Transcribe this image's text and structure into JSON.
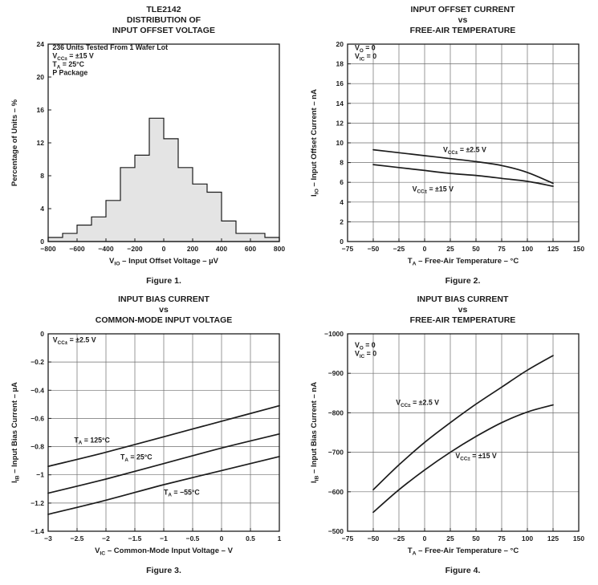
{
  "page": {
    "background": "#ffffff",
    "text_color": "#1c1c1c",
    "grid_color": "#6e6e6e",
    "histogram_fill": "#e4e4e4"
  },
  "chart_data": [
    {
      "type": "histogram",
      "title_lines": [
        "TLE2142",
        "DISTRIBUTION OF",
        "INPUT OFFSET VOLTAGE"
      ],
      "caption": "Figure 1.",
      "xlabel": "V_{IO} – Input Offset Voltage – µV",
      "ylabel": "Percentage of Units – %",
      "xlim": [
        -800,
        800
      ],
      "ylim": [
        0,
        24
      ],
      "xticks": [
        -800,
        -600,
        -400,
        -200,
        0,
        200,
        400,
        600,
        800
      ],
      "xtick_labels": [
        "−800",
        "−600",
        "−400",
        "−200",
        "0",
        "200",
        "400",
        "600",
        "800"
      ],
      "yticks": [
        0,
        4,
        8,
        12,
        16,
        20,
        24
      ],
      "ytick_labels": [
        "0",
        "4",
        "8",
        "12",
        "16",
        "20",
        "24"
      ],
      "grid": false,
      "bin_start": -800,
      "bin_width": 100,
      "values": [
        0.5,
        1,
        2,
        3,
        5,
        9,
        10.5,
        15,
        12.5,
        9,
        7,
        6,
        2.5,
        1,
        1,
        0.5
      ],
      "annotations": [
        {
          "x": -770,
          "y": 23.3,
          "anchor": "start",
          "lines": [
            "236 Units Tested From 1 Wafer Lot",
            "V_{CC±} = ±15 V",
            "T_{A} = 25°C",
            "P Package"
          ]
        }
      ]
    },
    {
      "type": "line",
      "title_lines": [
        "INPUT OFFSET CURRENT",
        "vs",
        "FREE-AIR TEMPERATURE"
      ],
      "caption": "Figure 2.",
      "xlabel": "T_{A} – Free-Air Temperature – °C",
      "ylabel": "I_{IO} – Input Offset Current – nA",
      "xlim": [
        -75,
        150
      ],
      "ylim": [
        0,
        20
      ],
      "xticks": [
        -75,
        -50,
        -25,
        0,
        25,
        50,
        75,
        100,
        125,
        150
      ],
      "xtick_labels": [
        "−75",
        "−50",
        "−25",
        "0",
        "25",
        "50",
        "75",
        "100",
        "125",
        "150"
      ],
      "yticks": [
        0,
        2,
        4,
        6,
        8,
        10,
        12,
        14,
        16,
        18,
        20
      ],
      "ytick_labels": [
        "0",
        "2",
        "4",
        "6",
        "8",
        "10",
        "12",
        "14",
        "16",
        "18",
        "20"
      ],
      "grid": true,
      "series": [
        {
          "name": "V_{CC±} = ±2.5 V",
          "points": [
            [
              -50,
              9.3
            ],
            [
              -25,
              9.0
            ],
            [
              0,
              8.7
            ],
            [
              25,
              8.4
            ],
            [
              50,
              8.1
            ],
            [
              75,
              7.7
            ],
            [
              100,
              7.0
            ],
            [
              125,
              5.9
            ]
          ],
          "label_x": 18,
          "label_y": 9.05,
          "label_anchor": "start"
        },
        {
          "name": "V_{CC±} = ±15 V",
          "points": [
            [
              -50,
              7.8
            ],
            [
              -25,
              7.5
            ],
            [
              0,
              7.2
            ],
            [
              25,
              6.9
            ],
            [
              50,
              6.7
            ],
            [
              75,
              6.4
            ],
            [
              100,
              6.1
            ],
            [
              125,
              5.6
            ]
          ],
          "label_x": -12,
          "label_y": 5.1,
          "label_anchor": "start"
        }
      ],
      "annotations": [
        {
          "x": -68,
          "y": 19.4,
          "anchor": "start",
          "lines": [
            "V_{O} = 0",
            "V_{IC} = 0"
          ]
        }
      ]
    },
    {
      "type": "line",
      "title_lines": [
        "INPUT BIAS CURRENT",
        "vs",
        "COMMON-MODE INPUT VOLTAGE"
      ],
      "caption": "Figure 3.",
      "xlabel": "V_{IC} – Common-Mode Input Voltage – V",
      "ylabel": "I_{IB} – Input Bias Current – µA",
      "xlim": [
        -3,
        1
      ],
      "ylim": [
        -1.4,
        0
      ],
      "xticks": [
        -3,
        -2.5,
        -2,
        -1.5,
        -1,
        -0.5,
        0,
        0.5,
        1
      ],
      "xtick_labels": [
        "−3",
        "−2.5",
        "−2",
        "−1.5",
        "−1",
        "−0.5",
        "0",
        "0.5",
        "1"
      ],
      "yticks": [
        0,
        -0.2,
        -0.4,
        -0.6,
        -0.8,
        -1,
        -1.2,
        -1.4
      ],
      "ytick_labels": [
        "0",
        "−0.2",
        "−0.4",
        "−0.6",
        "−0.8",
        "−1",
        "−1.2",
        "−1.4"
      ],
      "grid": true,
      "series": [
        {
          "name": "T_{A} = 125°C",
          "points": [
            [
              -3,
              -0.94
            ],
            [
              -2,
              -0.84
            ],
            [
              -1,
              -0.73
            ],
            [
              0,
              -0.62
            ],
            [
              1,
              -0.51
            ]
          ],
          "label_x": -2.55,
          "label_y": -0.77,
          "label_anchor": "start"
        },
        {
          "name": "T_{A} = 25°C",
          "points": [
            [
              -3,
              -1.13
            ],
            [
              -2,
              -1.03
            ],
            [
              -1,
              -0.92
            ],
            [
              0,
              -0.81
            ],
            [
              1,
              -0.71
            ]
          ],
          "label_x": -1.75,
          "label_y": -0.89,
          "label_anchor": "start"
        },
        {
          "name": "T_{A} = −55°C",
          "points": [
            [
              -3,
              -1.28
            ],
            [
              -2,
              -1.18
            ],
            [
              -1,
              -1.07
            ],
            [
              0,
              -0.97
            ],
            [
              1,
              -0.87
            ]
          ],
          "label_x": -1.0,
          "label_y": -1.14,
          "label_anchor": "start"
        }
      ],
      "annotations": [
        {
          "x": -2.92,
          "y": -0.06,
          "anchor": "start",
          "lines": [
            "V_{CC±} = ±2.5 V"
          ]
        }
      ]
    },
    {
      "type": "line",
      "title_lines": [
        "INPUT BIAS CURRENT",
        "vs",
        "FREE-AIR TEMPERATURE"
      ],
      "caption": "Figure 4.",
      "xlabel": "T_{A} – Free-Air Temperature – °C",
      "ylabel": "I_{IB} – Input Bias Current – nA",
      "xlim": [
        -75,
        150
      ],
      "ylim": [
        -500,
        -1000
      ],
      "xticks": [
        -75,
        -50,
        -25,
        0,
        25,
        50,
        75,
        100,
        125,
        150
      ],
      "xtick_labels": [
        "−75",
        "−50",
        "−25",
        "0",
        "25",
        "50",
        "75",
        "100",
        "125",
        "150"
      ],
      "yticks": [
        -1000,
        -900,
        -800,
        -700,
        -600,
        -500
      ],
      "ytick_labels": [
        "−1000",
        "−900",
        "−800",
        "−700",
        "−600",
        "−500"
      ],
      "grid": true,
      "series": [
        {
          "name": "V_{CC±} = ±2.5 V",
          "points": [
            [
              -50,
              -605
            ],
            [
              -25,
              -668
            ],
            [
              0,
              -725
            ],
            [
              25,
              -775
            ],
            [
              50,
              -822
            ],
            [
              75,
              -865
            ],
            [
              100,
              -908
            ],
            [
              125,
              -945
            ]
          ],
          "label_x": -28,
          "label_y": -820,
          "label_anchor": "start"
        },
        {
          "name": "V_{CC±} = ±15 V",
          "points": [
            [
              -50,
              -548
            ],
            [
              -25,
              -605
            ],
            [
              0,
              -655
            ],
            [
              25,
              -700
            ],
            [
              50,
              -740
            ],
            [
              75,
              -775
            ],
            [
              100,
              -802
            ],
            [
              125,
              -820
            ]
          ],
          "label_x": 30,
          "label_y": -685,
          "label_anchor": "start"
        }
      ],
      "annotations": [
        {
          "x": -68,
          "y": -965,
          "anchor": "start",
          "lines": [
            "V_{O} = 0",
            "V_{IC} = 0"
          ]
        }
      ]
    }
  ]
}
